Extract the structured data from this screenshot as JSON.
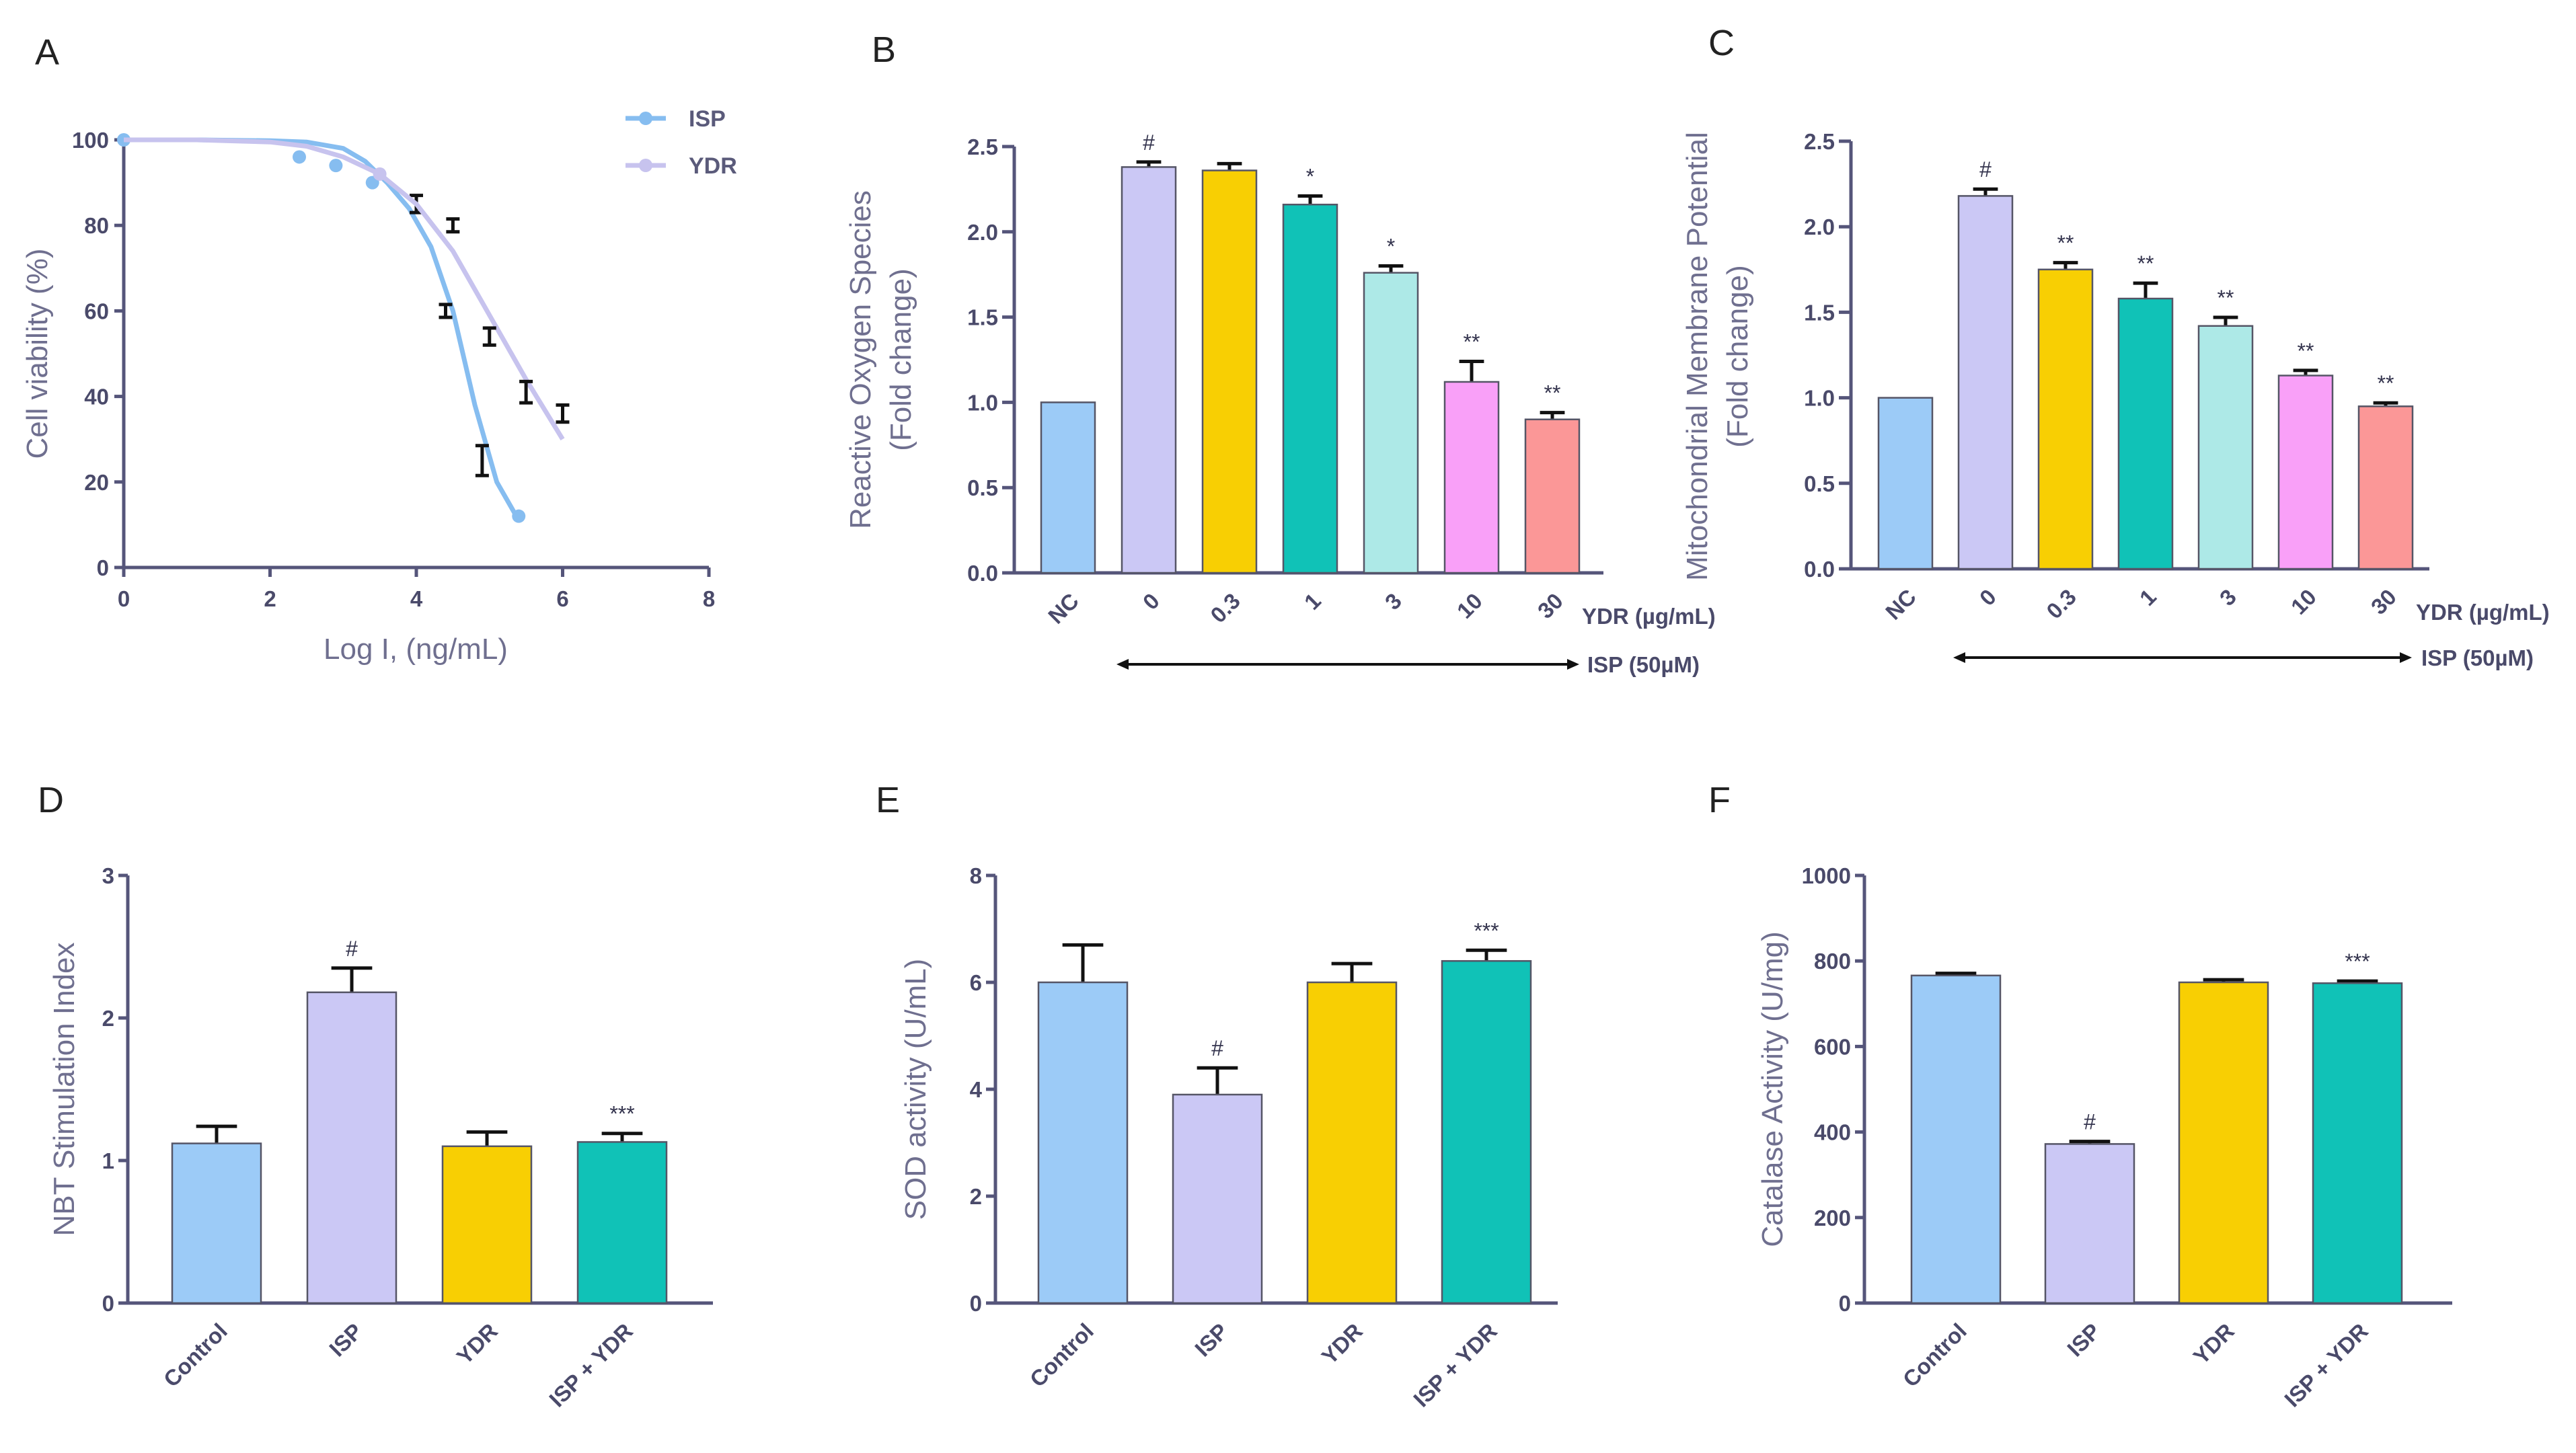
{
  "colors": {
    "blue": "#9ccbf7",
    "lavender": "#cbc8f5",
    "yellow": "#f8cf03",
    "teal": "#10c2b7",
    "cyan": "#ade9e7",
    "pink": "#f9a0f8",
    "salmon": "#fb9797",
    "isp_line": "#86bdf0",
    "ydr_line": "#c7c3ee"
  },
  "chart_data": [
    {
      "panel": "A",
      "type": "scatter",
      "xlabel": "Log I, (ng/mL)",
      "ylabel": "Cell viability (%)",
      "xlim": [
        0,
        8
      ],
      "ylim": [
        0,
        100
      ],
      "x_ticks": [
        "0",
        "2",
        "4",
        "6",
        "8"
      ],
      "y_ticks": [
        "0",
        "20",
        "40",
        "60",
        "80",
        "100"
      ],
      "legend": [
        "ISP",
        "YDR"
      ],
      "legend_position": "top-right",
      "series": [
        {
          "name": "ISP",
          "points": [
            [
              0,
              100
            ],
            [
              2.4,
              96
            ],
            [
              2.9,
              94
            ],
            [
              3.4,
              90
            ],
            [
              4.0,
              85
            ],
            [
              4.4,
              60
            ],
            [
              4.9,
              25
            ],
            [
              5.4,
              12
            ]
          ],
          "errors": [
            0,
            0,
            0,
            0,
            2,
            1.5,
            3.5,
            0
          ],
          "fit": [
            [
              0,
              100
            ],
            [
              1,
              100
            ],
            [
              2,
              99.8
            ],
            [
              2.5,
              99.5
            ],
            [
              3,
              98
            ],
            [
              3.3,
              95
            ],
            [
              3.6,
              90
            ],
            [
              3.9,
              84
            ],
            [
              4.2,
              75
            ],
            [
              4.5,
              60
            ],
            [
              4.8,
              38
            ],
            [
              5.1,
              20
            ],
            [
              5.4,
              11
            ]
          ]
        },
        {
          "name": "YDR",
          "points": [
            [
              3.5,
              92
            ],
            [
              4.5,
              80
            ],
            [
              5.0,
              54
            ],
            [
              5.5,
              41
            ],
            [
              6.0,
              36
            ]
          ],
          "errors": [
            0,
            1.5,
            2,
            2.5,
            2
          ],
          "fit": [
            [
              0,
              100
            ],
            [
              1,
              100
            ],
            [
              2,
              99.5
            ],
            [
              2.5,
              98.5
            ],
            [
              3,
              96
            ],
            [
              3.5,
              92
            ],
            [
              4,
              85
            ],
            [
              4.5,
              74
            ],
            [
              5,
              59
            ],
            [
              5.5,
              44
            ],
            [
              6,
              30
            ]
          ]
        }
      ]
    },
    {
      "panel": "B",
      "type": "bar",
      "ylabel": "Reactive Oxygen Species (Fold change)",
      "ylabel_lines": [
        "Reactive Oxygen  Species",
        "(Fold change)"
      ],
      "ylim": [
        0,
        2.5
      ],
      "y_ticks": [
        "0.0",
        "0.5",
        "1.0",
        "1.5",
        "2.0",
        "2.5"
      ],
      "categories": [
        "NC",
        "0",
        "0.3",
        "1",
        "3",
        "10",
        "30"
      ],
      "values": [
        1.0,
        2.38,
        2.36,
        2.16,
        1.76,
        1.12,
        0.9
      ],
      "errors": [
        0,
        0.03,
        0.04,
        0.05,
        0.04,
        0.12,
        0.04
      ],
      "significance": [
        "",
        "#",
        "",
        "*",
        "*",
        "**",
        "**"
      ],
      "dose_label": "YDR (µg/mL)",
      "arrow_label": "ISP (50µM)"
    },
    {
      "panel": "C",
      "type": "bar",
      "ylabel": "Mitochondrial Membrane Potential (Fold change)",
      "ylabel_lines": [
        "Mitochondrial Membrane Potential",
        "(Fold change)"
      ],
      "ylim": [
        0,
        2.5
      ],
      "y_ticks": [
        "0.0",
        "0.5",
        "1.0",
        "1.5",
        "2.0",
        "2.5"
      ],
      "categories": [
        "NC",
        "0",
        "0.3",
        "1",
        "3",
        "10",
        "30"
      ],
      "values": [
        1.0,
        2.18,
        1.75,
        1.58,
        1.42,
        1.13,
        0.95
      ],
      "errors": [
        0,
        0.04,
        0.04,
        0.09,
        0.05,
        0.03,
        0.02
      ],
      "significance": [
        "",
        "#",
        "**",
        "**",
        "**",
        "**",
        "**"
      ],
      "dose_label": "YDR (µg/mL)",
      "arrow_label": "ISP (50µM)"
    },
    {
      "panel": "D",
      "type": "bar",
      "ylabel": "NBT Stimulation Index",
      "ylim": [
        0,
        3
      ],
      "y_ticks": [
        "0",
        "1",
        "2",
        "3"
      ],
      "categories": [
        "Control",
        "ISP",
        "YDR",
        "ISP + YDR"
      ],
      "values": [
        1.12,
        2.18,
        1.1,
        1.13
      ],
      "errors": [
        0.12,
        0.17,
        0.1,
        0.06
      ],
      "significance": [
        "",
        "#",
        "",
        "***"
      ]
    },
    {
      "panel": "E",
      "type": "bar",
      "ylabel": "SOD activity (U/mL)",
      "ylim": [
        0,
        8
      ],
      "y_ticks": [
        "0",
        "2",
        "4",
        "6",
        "8"
      ],
      "categories": [
        "Control",
        "ISP",
        "YDR",
        "ISP + YDR"
      ],
      "values": [
        6.0,
        3.9,
        6.0,
        6.4
      ],
      "errors": [
        0.7,
        0.5,
        0.35,
        0.2
      ],
      "significance": [
        "",
        "#",
        "",
        "***"
      ]
    },
    {
      "panel": "F",
      "type": "bar",
      "ylabel": "Catalase Activity (U/mg)",
      "ylim": [
        0,
        1000
      ],
      "y_ticks": [
        "0",
        "200",
        "400",
        "600",
        "800",
        "1000"
      ],
      "categories": [
        "Control",
        "ISP",
        "YDR",
        "ISP + YDR"
      ],
      "values": [
        766,
        372,
        750,
        748
      ],
      "errors": [
        5,
        6,
        6,
        5
      ],
      "significance": [
        "",
        "#",
        "",
        "***"
      ]
    }
  ]
}
